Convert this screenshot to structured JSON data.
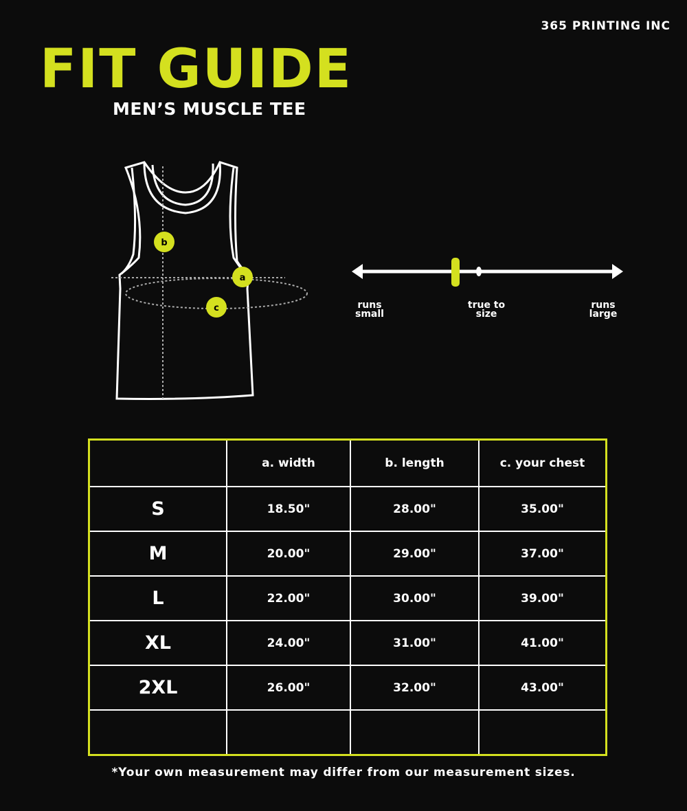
{
  "brand": "365 PRINTING INC",
  "title": "FIT GUIDE",
  "subtitle": "MEN’S MUSCLE TEE",
  "colors": {
    "accent": "#d4e01f",
    "background": "#0c0c0c",
    "line": "#ffffff"
  },
  "diagram": {
    "markers": [
      "a",
      "b",
      "c"
    ]
  },
  "fit_scale": {
    "labels": [
      "runs small",
      "true to size",
      "runs large"
    ],
    "position": 0.38
  },
  "table": {
    "headers": [
      "",
      "a. width",
      "b. length",
      "c. your chest"
    ],
    "rows": [
      [
        "S",
        "18.50\"",
        "28.00\"",
        "35.00\""
      ],
      [
        "M",
        "20.00\"",
        "29.00\"",
        "37.00\""
      ],
      [
        "L",
        "22.00\"",
        "30.00\"",
        "39.00\""
      ],
      [
        "XL",
        "24.00\"",
        "31.00\"",
        "41.00\""
      ],
      [
        "2XL",
        "26.00\"",
        "32.00\"",
        "43.00\""
      ],
      [
        "",
        "",
        "",
        ""
      ]
    ]
  },
  "note": "*Your own measurement may differ from our measurement sizes."
}
